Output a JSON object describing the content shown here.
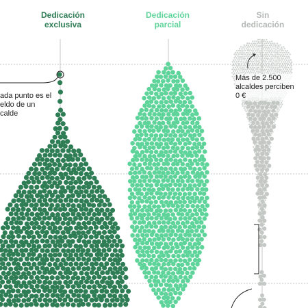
{
  "colors": {
    "exclusive": "#2e7d55",
    "partial": "#5fd49a",
    "none": "#c4c8c5",
    "grid": "#b5b5b5",
    "axis": "#c7c7c7"
  },
  "chart_data": {
    "type": "scatter",
    "title": "",
    "columns": [
      {
        "key": "exclusive",
        "title_line1": "Dedicación",
        "title_line2": "exclusiva",
        "color": "#2e7d55"
      },
      {
        "key": "partial",
        "title_line1": "Dedicación",
        "title_line2": "parcial",
        "color": "#5fd49a"
      },
      {
        "key": "none",
        "title_line1": "Sin",
        "title_line2": "dedicación",
        "color": "#b4b8b5"
      }
    ],
    "grid": true,
    "annotations": [
      {
        "target": "exclusive",
        "lines": [
          "ada punto es el",
          "eldo de un",
          "calde"
        ]
      },
      {
        "target": "none",
        "lines": [
          "Más de 2.500",
          "alcaldes perciben",
          "0 €"
        ]
      }
    ]
  }
}
